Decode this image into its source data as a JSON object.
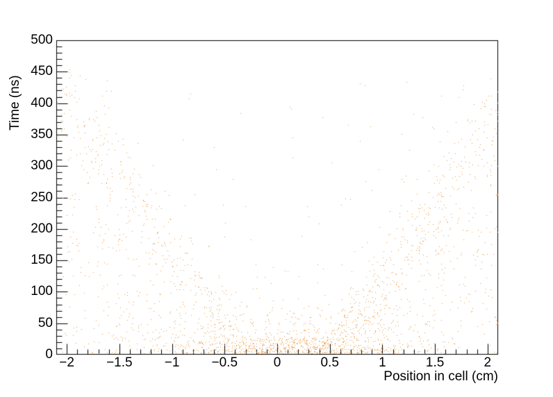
{
  "chart_data": {
    "type": "scatter",
    "title": "",
    "xlabel": "Position in cell (cm)",
    "ylabel": "Time (ns)",
    "xlim": [
      -2.1,
      2.1
    ],
    "ylim": [
      0,
      500
    ],
    "grid": false,
    "legend": false,
    "background_color": "#FFFFFF",
    "axis_color": "#000000",
    "marker_color": "#ED9538",
    "marker_size_px": 1,
    "x_ticks": [
      {
        "v": -2,
        "label": "−2"
      },
      {
        "v": -1.5,
        "label": "−1.5"
      },
      {
        "v": -1,
        "label": "−1"
      },
      {
        "v": -0.5,
        "label": "−0.5"
      },
      {
        "v": 0,
        "label": "0"
      },
      {
        "v": 0.5,
        "label": "0.5"
      },
      {
        "v": 1,
        "label": "1"
      },
      {
        "v": 1.5,
        "label": "1.5"
      },
      {
        "v": 2,
        "label": "2"
      }
    ],
    "x_minor_step": 0.1,
    "y_ticks": [
      {
        "v": 0,
        "label": "0"
      },
      {
        "v": 50,
        "label": "50"
      },
      {
        "v": 100,
        "label": "100"
      },
      {
        "v": 150,
        "label": "150"
      },
      {
        "v": 200,
        "label": "200"
      },
      {
        "v": 250,
        "label": "250"
      },
      {
        "v": 300,
        "label": "300"
      },
      {
        "v": 350,
        "label": "350"
      },
      {
        "v": 400,
        "label": "400"
      },
      {
        "v": 450,
        "label": "450"
      },
      {
        "v": 500,
        "label": "500"
      }
    ],
    "y_minor_step": 10,
    "point_generation": {
      "description": "V-shaped drift-time distribution: time rises ~linearly with |position| from a vertex near x=0.075, with wedge fill below the band, a dense low-time cluster near the wire, and sparse uniform background.",
      "seed": 1369420,
      "slope_ns_per_cm": 235,
      "vertex_center": 0.075,
      "vertex_halfgap": 0.375,
      "t_max": 456,
      "components": {
        "wedge": {
          "count": 1000,
          "pow": 1.1,
          "pad": 25
        },
        "band": {
          "count": 480,
          "sigma": 45,
          "left": [
            -2.1,
            -0.45
          ],
          "right": [
            0.6,
            2.1
          ]
        },
        "bottom": {
          "count": 700,
          "x_mean": 0.15,
          "x_sigma": 0.8,
          "x_min": -1.65,
          "x_max": 1.75,
          "t0": 2,
          "tau": 28,
          "t_cap": 140
        },
        "background": {
          "count": 120,
          "t_min": 2,
          "t_max": 440
        }
      }
    }
  }
}
